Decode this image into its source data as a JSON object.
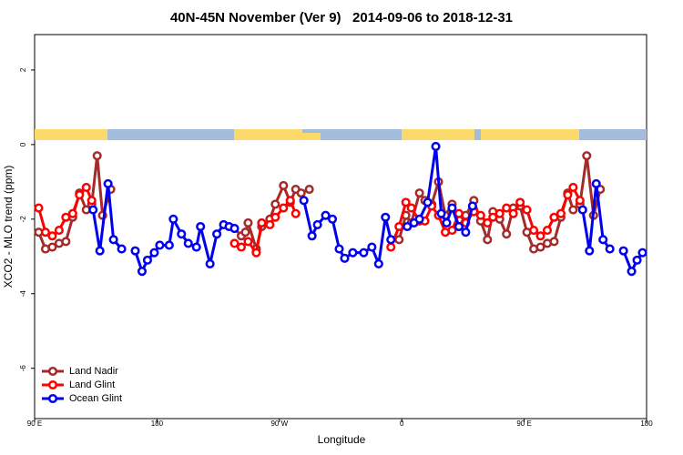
{
  "chart_data": {
    "type": "line",
    "title": "40N-45N November (Ver 9)   2014-09-06 to 2018-12-31",
    "xlabel": "Longitude",
    "ylabel": "XCO2 - MLO trend (ppm)",
    "xlim": [
      90,
      540
    ],
    "ylim": [
      -7.35,
      2.95
    ],
    "xticks": [
      {
        "value": 90,
        "label": "90 E"
      },
      180,
      {
        "value": 270,
        "label": "90 W"
      },
      0.0001,
      {
        "value": 450,
        "label": "90 E"
      },
      {
        "value": 540,
        "label": "180"
      }
    ],
    "yticks": [
      2,
      0,
      -2,
      -4,
      -6
    ],
    "legend": "bottom-left",
    "series": [
      {
        "name": "Land Nadir",
        "color": "#a52a2a",
        "x": [
          93,
          98,
          103,
          108,
          113,
          118,
          123,
          128,
          132,
          136,
          140,
          146,
          190,
          237,
          242,
          245,
          247,
          253,
          257,
          263,
          267,
          273,
          278,
          282,
          286,
          292,
          320,
          358,
          363,
          367,
          373,
          377,
          382,
          387,
          392,
          397,
          402,
          407,
          413,
          418,
          423,
          427,
          432,
          437,
          442,
          447,
          452,
          457,
          462,
          467,
          472,
          477,
          482,
          486,
          491,
          496,
          501,
          506
        ],
        "values": [
          -2.35,
          -2.8,
          -2.75,
          -2.65,
          -2.6,
          -1.95,
          -1.3,
          -1.75,
          -1.6,
          -0.3,
          -1.9,
          -1.2,
          null,
          -2.25,
          -2.45,
          -2.35,
          -2.1,
          -2.8,
          -2.2,
          -2.0,
          -1.6,
          -1.1,
          -1.55,
          -1.2,
          -1.3,
          -1.2,
          null,
          -2.55,
          -1.9,
          -2.1,
          -1.3,
          -1.5,
          -1.6,
          -1.0,
          -1.9,
          -1.6,
          -2.2,
          -1.9,
          -1.5,
          -2.05,
          -2.55,
          -1.8,
          -2.0,
          -2.4,
          -1.7,
          -1.65,
          -2.35,
          -2.8,
          -2.75,
          -2.65,
          -2.6,
          -1.95,
          -1.3,
          -1.75,
          -1.6,
          -0.3,
          -1.9,
          -1.2
        ]
      },
      {
        "name": "Land Glint",
        "color": "#ff0000",
        "x": [
          93,
          98,
          103,
          108,
          113,
          118,
          123,
          128,
          132,
          190,
          237,
          242,
          247,
          253,
          257,
          263,
          267,
          273,
          278,
          282,
          320,
          352,
          358,
          363,
          367,
          373,
          377,
          382,
          387,
          392,
          397,
          402,
          407,
          413,
          418,
          423,
          427,
          432,
          437,
          442,
          447,
          452,
          457,
          462,
          467,
          472,
          477,
          482,
          486,
          491
        ],
        "values": [
          -1.7,
          -2.35,
          -2.45,
          -2.3,
          -1.95,
          -1.85,
          -1.35,
          -1.15,
          -1.5,
          null,
          -2.65,
          -2.75,
          -2.6,
          -2.9,
          -2.1,
          -2.15,
          -1.95,
          -1.7,
          -1.5,
          -1.85,
          null,
          -2.75,
          -2.2,
          -1.55,
          -1.7,
          -2.05,
          -2.05,
          -1.65,
          -1.9,
          -2.35,
          -2.3,
          -1.85,
          -2.1,
          -1.8,
          -1.9,
          -2.1,
          -1.95,
          -1.85,
          -1.7,
          -1.85,
          -1.55,
          -1.75,
          -2.3,
          -2.45,
          -2.3,
          -1.95,
          -1.85,
          -1.35,
          -1.15,
          -1.5
        ]
      },
      {
        "name": "Ocean Glint",
        "color": "#0000ee",
        "x": [
          133,
          138,
          144,
          148,
          154,
          159,
          164,
          169,
          173,
          178,
          182,
          189,
          192,
          198,
          203,
          209,
          212,
          219,
          224,
          229,
          233,
          237,
          262,
          288,
          294,
          298,
          304,
          309,
          314,
          318,
          324,
          332,
          338,
          343,
          348,
          352,
          358,
          364,
          369,
          373,
          379,
          385,
          389,
          393,
          397,
          402,
          407,
          412,
          450,
          493,
          498,
          503,
          508,
          513,
          518,
          523,
          529,
          533,
          537
        ],
        "values": [
          -1.75,
          -2.85,
          -1.05,
          -2.55,
          -2.8,
          null,
          -2.85,
          -3.4,
          -3.1,
          -2.9,
          -2.7,
          -2.7,
          -2.0,
          -2.4,
          -2.65,
          -2.75,
          -2.2,
          -3.2,
          -2.4,
          -2.15,
          -2.2,
          -2.25,
          null,
          -1.5,
          -2.45,
          -2.15,
          -1.9,
          -2.0,
          -2.8,
          -3.05,
          -2.9,
          -2.9,
          -2.75,
          -3.2,
          -1.95,
          -2.55,
          null,
          -2.2,
          -2.1,
          -2.0,
          -1.55,
          -0.05,
          -1.85,
          -2.1,
          -1.7,
          -2.2,
          -2.35,
          -1.65,
          null,
          -1.75,
          -2.85,
          -1.05,
          -2.55,
          -2.8,
          null,
          -2.85,
          -3.4,
          -3.1,
          -2.9
        ]
      }
    ]
  }
}
